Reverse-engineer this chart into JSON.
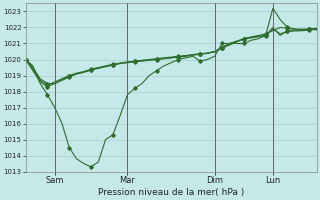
{
  "title": "",
  "xlabel": "Pression niveau de la mer( hPa )",
  "background_color": "#c5e8e8",
  "grid_color": "#aacccc",
  "line_color": "#2d6e2d",
  "ylim": [
    1013,
    1023.5
  ],
  "yticks": [
    1013,
    1014,
    1015,
    1016,
    1017,
    1018,
    1019,
    1020,
    1021,
    1022,
    1023
  ],
  "xtick_labels": [
    "Sam",
    "Mar",
    "Dim",
    "Lun"
  ],
  "vline_x": [
    16,
    56,
    104,
    136
  ],
  "total_points": 160,
  "series": [
    {
      "points": [
        [
          0,
          1020
        ],
        [
          4,
          1019.6
        ],
        [
          8,
          1018.5
        ],
        [
          12,
          1017.8
        ],
        [
          16,
          1017.0
        ],
        [
          20,
          1016.0
        ],
        [
          24,
          1014.5
        ],
        [
          28,
          1013.8
        ],
        [
          32,
          1013.5
        ],
        [
          36,
          1013.3
        ],
        [
          40,
          1013.6
        ],
        [
          44,
          1015.0
        ],
        [
          48,
          1015.3
        ],
        [
          52,
          1016.5
        ],
        [
          56,
          1017.8
        ],
        [
          60,
          1018.2
        ],
        [
          64,
          1018.5
        ],
        [
          68,
          1019.0
        ],
        [
          72,
          1019.3
        ],
        [
          76,
          1019.6
        ],
        [
          80,
          1019.8
        ],
        [
          84,
          1020.0
        ],
        [
          88,
          1020.1
        ],
        [
          92,
          1020.2
        ],
        [
          96,
          1019.9
        ],
        [
          100,
          1020.0
        ],
        [
          104,
          1020.2
        ],
        [
          108,
          1021.0
        ],
        [
          112,
          1021.0
        ],
        [
          116,
          1021.0
        ],
        [
          120,
          1021.0
        ],
        [
          124,
          1021.2
        ],
        [
          128,
          1021.3
        ],
        [
          132,
          1021.5
        ],
        [
          136,
          1023.2
        ],
        [
          140,
          1022.5
        ],
        [
          144,
          1022.0
        ],
        [
          148,
          1021.9
        ],
        [
          152,
          1021.8
        ],
        [
          156,
          1021.9
        ],
        [
          160,
          1021.85
        ]
      ]
    },
    {
      "points": [
        [
          0,
          1020
        ],
        [
          4,
          1019.5
        ],
        [
          8,
          1018.8
        ],
        [
          12,
          1018.5
        ],
        [
          16,
          1018.5
        ],
        [
          20,
          1018.7
        ],
        [
          24,
          1018.9
        ],
        [
          28,
          1019.1
        ],
        [
          32,
          1019.2
        ],
        [
          36,
          1019.35
        ],
        [
          40,
          1019.45
        ],
        [
          44,
          1019.55
        ],
        [
          48,
          1019.65
        ],
        [
          52,
          1019.75
        ],
        [
          56,
          1019.8
        ],
        [
          60,
          1019.85
        ],
        [
          64,
          1019.9
        ],
        [
          68,
          1019.95
        ],
        [
          72,
          1020.0
        ],
        [
          76,
          1020.05
        ],
        [
          80,
          1020.1
        ],
        [
          84,
          1020.15
        ],
        [
          88,
          1020.2
        ],
        [
          92,
          1020.3
        ],
        [
          96,
          1020.35
        ],
        [
          100,
          1020.4
        ],
        [
          104,
          1020.5
        ],
        [
          108,
          1020.7
        ],
        [
          112,
          1020.9
        ],
        [
          116,
          1021.1
        ],
        [
          120,
          1021.3
        ],
        [
          124,
          1021.4
        ],
        [
          128,
          1021.5
        ],
        [
          132,
          1021.6
        ],
        [
          136,
          1021.8
        ],
        [
          140,
          1022.0
        ],
        [
          144,
          1021.95
        ],
        [
          148,
          1021.9
        ],
        [
          152,
          1021.9
        ],
        [
          156,
          1021.9
        ],
        [
          160,
          1021.95
        ]
      ]
    },
    {
      "points": [
        [
          0,
          1020
        ],
        [
          4,
          1019.4
        ],
        [
          8,
          1018.7
        ],
        [
          12,
          1018.4
        ],
        [
          16,
          1018.6
        ],
        [
          20,
          1018.8
        ],
        [
          24,
          1019.0
        ],
        [
          28,
          1019.15
        ],
        [
          32,
          1019.25
        ],
        [
          36,
          1019.4
        ],
        [
          40,
          1019.5
        ],
        [
          44,
          1019.6
        ],
        [
          48,
          1019.7
        ],
        [
          52,
          1019.78
        ],
        [
          56,
          1019.85
        ],
        [
          60,
          1019.9
        ],
        [
          64,
          1019.95
        ],
        [
          68,
          1020.0
        ],
        [
          72,
          1020.05
        ],
        [
          76,
          1020.1
        ],
        [
          80,
          1020.15
        ],
        [
          84,
          1020.2
        ],
        [
          88,
          1020.25
        ],
        [
          92,
          1020.3
        ],
        [
          96,
          1020.35
        ],
        [
          100,
          1020.4
        ],
        [
          104,
          1020.5
        ],
        [
          108,
          1020.75
        ],
        [
          112,
          1021.0
        ],
        [
          116,
          1021.15
        ],
        [
          120,
          1021.3
        ],
        [
          124,
          1021.4
        ],
        [
          128,
          1021.45
        ],
        [
          132,
          1021.5
        ],
        [
          136,
          1022.0
        ],
        [
          140,
          1021.5
        ],
        [
          144,
          1021.8
        ],
        [
          148,
          1021.85
        ],
        [
          152,
          1021.85
        ],
        [
          156,
          1021.9
        ],
        [
          160,
          1021.9
        ]
      ]
    },
    {
      "points": [
        [
          0,
          1020
        ],
        [
          4,
          1019.3
        ],
        [
          8,
          1018.6
        ],
        [
          12,
          1018.3
        ],
        [
          16,
          1018.5
        ],
        [
          20,
          1018.75
        ],
        [
          24,
          1018.95
        ],
        [
          28,
          1019.1
        ],
        [
          32,
          1019.22
        ],
        [
          36,
          1019.35
        ],
        [
          40,
          1019.46
        ],
        [
          44,
          1019.57
        ],
        [
          48,
          1019.67
        ],
        [
          52,
          1019.76
        ],
        [
          56,
          1019.83
        ],
        [
          60,
          1019.88
        ],
        [
          64,
          1019.93
        ],
        [
          68,
          1019.97
        ],
        [
          72,
          1020.01
        ],
        [
          76,
          1020.06
        ],
        [
          80,
          1020.12
        ],
        [
          84,
          1020.17
        ],
        [
          88,
          1020.22
        ],
        [
          92,
          1020.27
        ],
        [
          96,
          1020.33
        ],
        [
          100,
          1020.38
        ],
        [
          104,
          1020.48
        ],
        [
          108,
          1020.72
        ],
        [
          112,
          1020.97
        ],
        [
          116,
          1021.12
        ],
        [
          120,
          1021.27
        ],
        [
          124,
          1021.35
        ],
        [
          128,
          1021.42
        ],
        [
          132,
          1021.48
        ],
        [
          136,
          1021.9
        ],
        [
          140,
          1021.6
        ],
        [
          144,
          1021.75
        ],
        [
          148,
          1021.78
        ],
        [
          152,
          1021.8
        ],
        [
          156,
          1021.85
        ],
        [
          160,
          1021.88
        ]
      ]
    }
  ]
}
